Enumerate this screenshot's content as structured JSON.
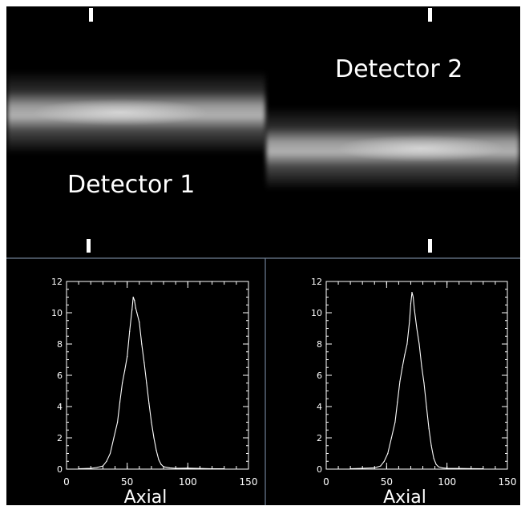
{
  "detectors": [
    {
      "label": "Detector 1"
    },
    {
      "label": "Detector 2"
    }
  ],
  "colors": {
    "background": "#000000",
    "trace": "#ffffff",
    "divider": "#6f7f95",
    "beam": "#ffffff"
  },
  "chart_data": [
    {
      "type": "line",
      "xlabel": "Axial",
      "ylabel": "",
      "xlim": [
        0,
        150
      ],
      "ylim": [
        0,
        12
      ],
      "xticks": [
        "0",
        "50",
        "100",
        "150"
      ],
      "yticks": [
        "0",
        "2",
        "4",
        "6",
        "8",
        "10",
        "12"
      ],
      "grid": false,
      "x": [
        10,
        20,
        25,
        30,
        33,
        36,
        39,
        42,
        44,
        46,
        48,
        50,
        52,
        54,
        55,
        56,
        57,
        58,
        60,
        62,
        64,
        66,
        68,
        70,
        72,
        74,
        76,
        78,
        80,
        85,
        90,
        100,
        110,
        120,
        130
      ],
      "y": [
        0.02,
        0.05,
        0.1,
        0.2,
        0.5,
        1.0,
        2.0,
        3.0,
        4.3,
        5.5,
        6.3,
        7.2,
        8.8,
        10.2,
        11.0,
        10.8,
        10.3,
        10.0,
        9.4,
        8.0,
        6.8,
        5.5,
        4.2,
        3.0,
        2.0,
        1.2,
        0.6,
        0.3,
        0.15,
        0.08,
        0.05,
        0.06,
        0.04,
        0.02,
        0.02
      ]
    },
    {
      "type": "line",
      "xlabel": "Axial",
      "ylabel": "",
      "xlim": [
        0,
        150
      ],
      "ylim": [
        0,
        12
      ],
      "xticks": [
        "0",
        "50",
        "100",
        "150"
      ],
      "yticks": [
        "0",
        "2",
        "4",
        "6",
        "8",
        "10",
        "12"
      ],
      "grid": false,
      "x": [
        20,
        30,
        40,
        45,
        48,
        51,
        54,
        57,
        59,
        61,
        63,
        65,
        67,
        69,
        70,
        71,
        72,
        73,
        75,
        77,
        79,
        81,
        83,
        85,
        87,
        89,
        91,
        93,
        96,
        100,
        110,
        120,
        130
      ],
      "y": [
        0.02,
        0.05,
        0.08,
        0.2,
        0.5,
        1.0,
        2.0,
        3.0,
        4.3,
        5.6,
        6.5,
        7.3,
        8.0,
        9.5,
        10.6,
        11.3,
        11.0,
        10.2,
        9.0,
        8.0,
        6.6,
        5.5,
        4.0,
        2.6,
        1.5,
        0.7,
        0.3,
        0.15,
        0.08,
        0.05,
        0.04,
        0.03,
        0.02
      ]
    }
  ]
}
